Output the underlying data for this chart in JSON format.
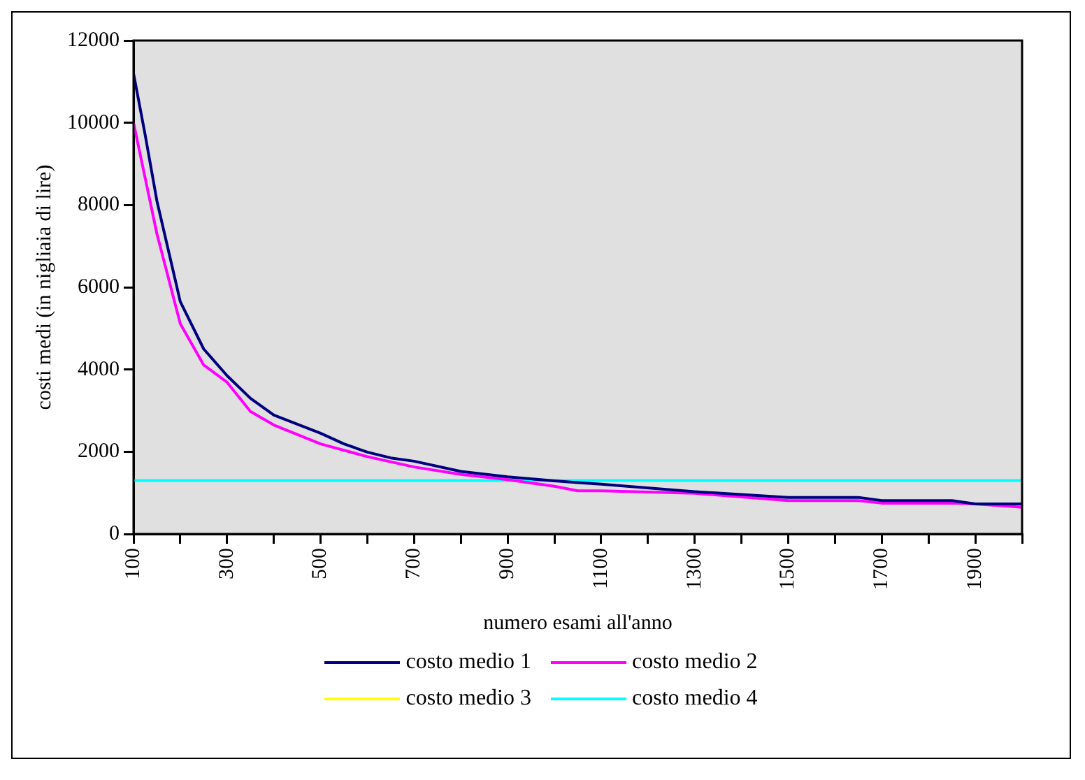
{
  "chart_data": {
    "type": "line",
    "xlabel": "numero esami all'anno",
    "ylabel": "costi medi (in nigliaia di lire)",
    "xlim": [
      100,
      2000
    ],
    "xticks": [
      100,
      {
        "value": 200,
        "label": null
      },
      300,
      {
        "value": 400,
        "label": null
      },
      500,
      {
        "value": 600,
        "label": null
      },
      700,
      {
        "value": 800,
        "label": null
      },
      900,
      {
        "value": 1000,
        "label": null
      },
      1100,
      {
        "value": 1200,
        "label": null
      },
      1300,
      {
        "value": 1400,
        "label": null
      },
      1500,
      {
        "value": 1600,
        "label": null
      },
      1700,
      {
        "value": 1800,
        "label": null
      },
      1900,
      {
        "value": 2000,
        "label": null
      }
    ],
    "ylim": [
      0,
      12000
    ],
    "yticks": [
      0,
      2000,
      4000,
      6000,
      8000,
      10000,
      12000
    ],
    "grid": false,
    "legend": "bottom",
    "marker": "none",
    "line_style": "solid",
    "series": [
      {
        "name": "costo medio 1",
        "color": "#000080",
        "x": [
          100,
          125,
          150,
          200,
          250,
          300,
          350,
          400,
          500,
          550,
          600,
          650,
          700,
          800,
          900,
          1000,
          1050,
          1100,
          1300,
          1500,
          1650,
          1700,
          1850,
          1900,
          2000
        ],
        "values": [
          11200,
          9700,
          8100,
          5650,
          4500,
          3850,
          3300,
          2890,
          2450,
          2190,
          1990,
          1850,
          1770,
          1520,
          1390,
          1290,
          1250,
          1210,
          1030,
          890,
          890,
          810,
          810,
          730,
          730
        ]
      },
      {
        "name": "costo medio 2",
        "color": "#ff00ff",
        "x": [
          100,
          125,
          150,
          200,
          250,
          300,
          350,
          400,
          500,
          600,
          700,
          800,
          900,
          1000,
          1050,
          1100,
          1300,
          1500,
          1650,
          1700,
          1850,
          1900,
          2000
        ],
        "values": [
          10000,
          8650,
          7300,
          5110,
          4110,
          3690,
          2980,
          2650,
          2190,
          1880,
          1630,
          1450,
          1320,
          1160,
          1050,
          1050,
          990,
          810,
          810,
          750,
          750,
          730,
          650
        ]
      },
      {
        "name": "costo medio 3",
        "color": "#ffff00"
      },
      {
        "name": "costo medio 4",
        "color": "#00ffff",
        "x": [
          100,
          2000
        ],
        "values": [
          1300,
          1300
        ]
      }
    ]
  }
}
